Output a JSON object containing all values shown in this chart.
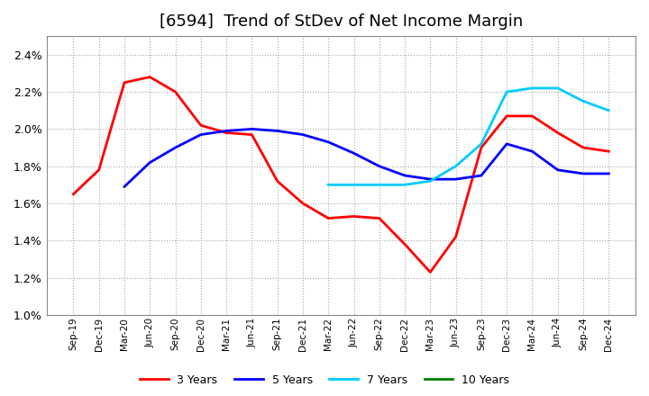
{
  "title": "[6594]  Trend of StDev of Net Income Margin",
  "title_fontsize": 13,
  "ylim": [
    1.0,
    2.5
  ],
  "yticks": [
    1.0,
    1.2,
    1.4,
    1.6,
    1.8,
    2.0,
    2.2,
    2.4
  ],
  "background_color": "#ffffff",
  "plot_bg_color": "#ffffff",
  "grid_color": "#aaaaaa",
  "x_labels": [
    "Sep-19",
    "Dec-19",
    "Mar-20",
    "Jun-20",
    "Sep-20",
    "Dec-20",
    "Mar-21",
    "Jun-21",
    "Sep-21",
    "Dec-21",
    "Mar-22",
    "Jun-22",
    "Sep-22",
    "Dec-22",
    "Mar-23",
    "Jun-23",
    "Sep-23",
    "Dec-23",
    "Mar-24",
    "Jun-24",
    "Sep-24",
    "Dec-24"
  ],
  "series": {
    "3 Years": {
      "color": "#ff0000",
      "data": [
        1.65,
        1.78,
        2.25,
        2.28,
        2.2,
        2.02,
        1.98,
        1.97,
        1.72,
        1.6,
        1.52,
        1.53,
        1.52,
        1.38,
        1.23,
        1.42,
        1.9,
        2.07,
        2.07,
        1.98,
        1.9,
        1.88
      ]
    },
    "5 Years": {
      "color": "#0000ff",
      "data": [
        null,
        null,
        1.69,
        1.82,
        1.9,
        1.97,
        1.99,
        2.0,
        1.99,
        1.97,
        1.93,
        1.87,
        1.8,
        1.75,
        1.73,
        1.73,
        1.75,
        1.92,
        1.88,
        1.78,
        1.76,
        1.76
      ]
    },
    "7 Years": {
      "color": "#00ccff",
      "data": [
        null,
        null,
        null,
        null,
        null,
        null,
        null,
        null,
        null,
        null,
        1.7,
        1.7,
        1.7,
        1.7,
        1.72,
        1.8,
        1.92,
        2.2,
        2.22,
        2.22,
        2.15,
        2.1
      ]
    },
    "10 Years": {
      "color": "#008000",
      "data": [
        null,
        null,
        null,
        null,
        null,
        null,
        null,
        null,
        null,
        null,
        null,
        null,
        null,
        null,
        null,
        null,
        null,
        null,
        null,
        null,
        null,
        null
      ]
    }
  },
  "legend_ncol": 4,
  "figsize": [
    7.2,
    4.4
  ],
  "dpi": 100
}
